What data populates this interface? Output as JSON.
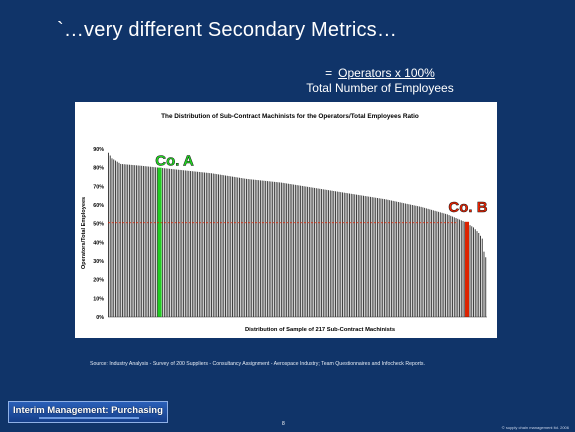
{
  "slide": {
    "title": "`…very different Secondary Metrics…",
    "formula_equals": "=",
    "formula_numerator": "Operators x 100%",
    "formula_denominator": "Total Number of Employees",
    "source_note": "Source: Industry Analysis - Survey of 200 Suppliers -  Consultancy Assignment - Aerospace Industry; Team Questionnaires and Infocheck Reports.",
    "logo_text": "Interim Management: Purchasing",
    "page_number": "8",
    "copyright": "© supply chain management ltd. 2006"
  },
  "colors": {
    "background": "#103469",
    "bar": "#3a3a3a",
    "highlight_a": "#22cc22",
    "highlight_b": "#dd2200",
    "reference_line": "#dd2200",
    "label_a": "#22dd22",
    "label_b": "#ee2200"
  },
  "chart_data": {
    "type": "bar",
    "title": "The Distribution of Sub-Contract Machinists for the Operators/Total Employees Ratio",
    "xlabel": "Distribution of Sample of 217 Sub-Contract Machinists",
    "ylabel": "Operators/Total Employees",
    "ylim": [
      0,
      0.9
    ],
    "y_ticks": [
      "0%",
      "10%",
      "20%",
      "30%",
      "40%",
      "50%",
      "60%",
      "70%",
      "80%",
      "90%"
    ],
    "y_tick_values": [
      0,
      0.1,
      0.2,
      0.3,
      0.4,
      0.5,
      0.6,
      0.7,
      0.8,
      0.9
    ],
    "n": 217,
    "sorted": "descending",
    "profile": [
      [
        1,
        0.88
      ],
      [
        3,
        0.85
      ],
      [
        8,
        0.82
      ],
      [
        20,
        0.81
      ],
      [
        40,
        0.79
      ],
      [
        60,
        0.77
      ],
      [
        80,
        0.74
      ],
      [
        100,
        0.72
      ],
      [
        120,
        0.69
      ],
      [
        140,
        0.66
      ],
      [
        160,
        0.63
      ],
      [
        180,
        0.59
      ],
      [
        195,
        0.55
      ],
      [
        205,
        0.51
      ],
      [
        210,
        0.48
      ],
      [
        213,
        0.45
      ],
      [
        215,
        0.42
      ],
      [
        216,
        0.35
      ],
      [
        217,
        0.32
      ]
    ],
    "reference_line": 0.505,
    "highlights": [
      {
        "label": "Co. A",
        "rank": 30,
        "value": 0.8
      },
      {
        "label": "Co. B",
        "rank": 206,
        "value": 0.51
      }
    ]
  }
}
